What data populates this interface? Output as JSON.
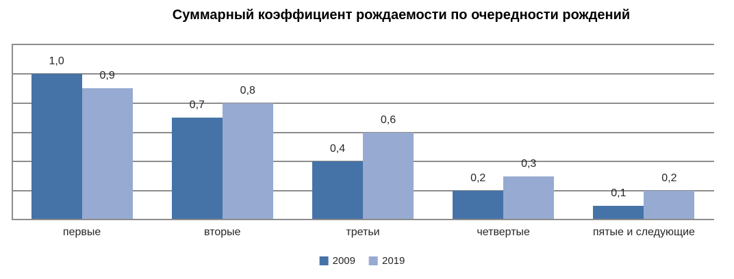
{
  "title": "Суммарный коэффициент рождаемости по очередности рождений",
  "chart_data": {
    "type": "bar",
    "title": "Суммарный коэффициент рождаемости по очередности рождений",
    "categories": [
      "первые",
      "вторые",
      "третьи",
      "четвертые",
      "пятые и следующие"
    ],
    "series": [
      {
        "name": "2009",
        "color": "#4573a7",
        "values": [
          1.0,
          0.7,
          0.4,
          0.2,
          0.1
        ],
        "labels": [
          "1,0",
          "0,7",
          "0,4",
          "0,2",
          "0,1"
        ]
      },
      {
        "name": "2019",
        "color": "#97aad2",
        "values": [
          0.9,
          0.8,
          0.6,
          0.3,
          0.2
        ],
        "labels": [
          "0,9",
          "0,8",
          "0,6",
          "0,3",
          "0,2"
        ]
      }
    ],
    "xlabel": "",
    "ylabel": "",
    "ylim": [
      0,
      1.2
    ],
    "gridline_step": 0.2,
    "y_tick_labels_shown": false,
    "grid": "horizontal",
    "gridline_color": "#8c8c8c",
    "axis_color": "#8c8c8c",
    "data_labels": "decimal-comma values above each bar",
    "legend_position": "bottom-center"
  }
}
